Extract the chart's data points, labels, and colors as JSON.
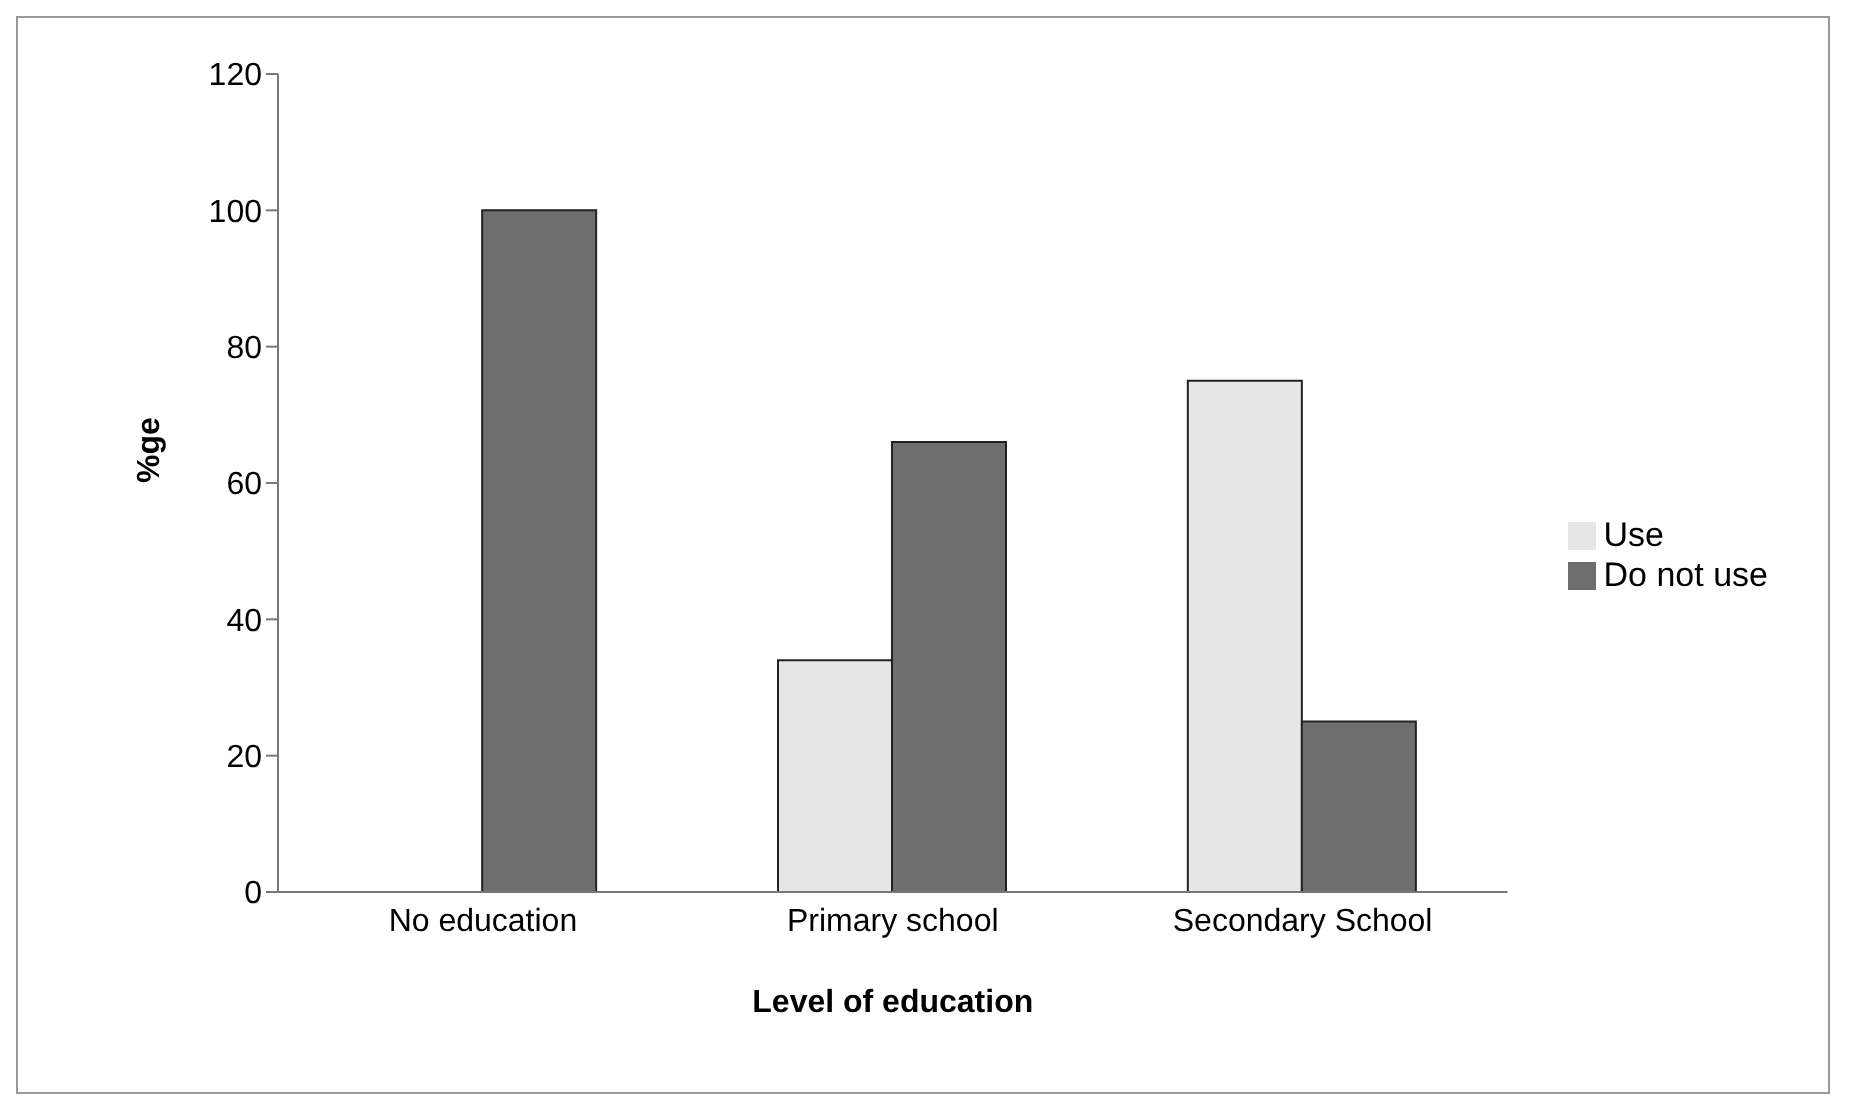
{
  "chart_data": {
    "type": "bar",
    "xlabel": "Level of education",
    "ylabel": "%ge",
    "categories": [
      "No education",
      "Primary school",
      "Secondary School"
    ],
    "series": [
      {
        "name": "Use",
        "color": "#e6e6e6",
        "values": [
          0,
          34,
          75
        ]
      },
      {
        "name": "Do not use",
        "color": "#6e6e6e",
        "values": [
          100,
          66,
          25
        ]
      }
    ],
    "ylim": [
      0,
      120
    ],
    "yticks": [
      0,
      20,
      40,
      60,
      80,
      100,
      120
    ],
    "grid": false,
    "legend": "right"
  }
}
